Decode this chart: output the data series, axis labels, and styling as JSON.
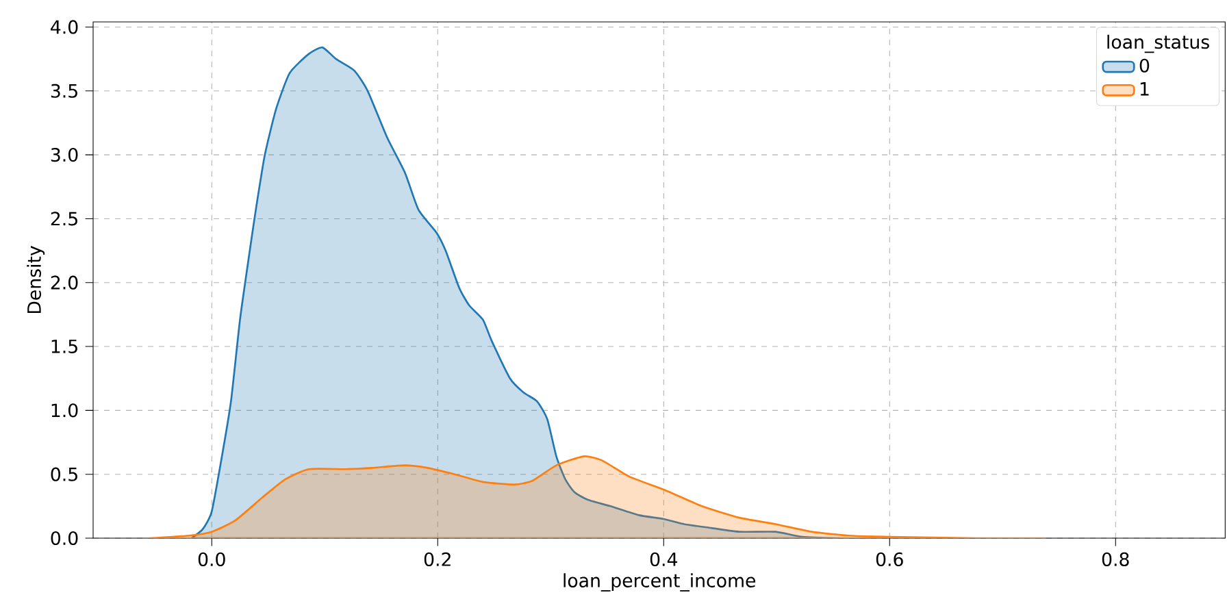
{
  "chart_data": {
    "type": "area",
    "xlabel": "loan_percent_income",
    "ylabel": "Density",
    "legend_title": "loan_status",
    "xlim": [
      -0.105,
      0.897
    ],
    "ylim": [
      0,
      4.04
    ],
    "xticks": [
      {
        "value": 0,
        "label": "0.0"
      },
      {
        "value": 0.2,
        "label": "0.2"
      },
      {
        "value": 0.4,
        "label": "0.4"
      },
      {
        "value": 0.6,
        "label": "0.6"
      },
      {
        "value": 0.8,
        "label": "0.8"
      }
    ],
    "yticks": [
      {
        "value": 0,
        "label": "0.0"
      },
      {
        "value": 0.5,
        "label": "0.5"
      },
      {
        "value": 1,
        "label": "1.0"
      },
      {
        "value": 1.5,
        "label": "1.5"
      },
      {
        "value": 2,
        "label": "2.0"
      },
      {
        "value": 2.5,
        "label": "2.5"
      },
      {
        "value": 3,
        "label": "3.0"
      },
      {
        "value": 3.5,
        "label": "3.5"
      },
      {
        "value": 4,
        "label": "4.0"
      }
    ],
    "grid": true,
    "legend": "top right",
    "series": [
      {
        "name": "0",
        "color": "#1f77b4",
        "x": [
          -0.018,
          -0.008,
          0,
          0.009,
          0.017,
          0.025,
          0.033,
          0.039,
          0.047,
          0.057,
          0.069,
          0.086,
          0.098,
          0.11,
          0.126,
          0.138,
          0.155,
          0.171,
          0.183,
          0.199,
          0.207,
          0.219,
          0.228,
          0.24,
          0.248,
          0.264,
          0.276,
          0.288,
          0.297,
          0.305,
          0.313,
          0.321,
          0.333,
          0.353,
          0.378,
          0.4,
          0.418,
          0.442,
          0.467,
          0.499,
          0.523,
          0.556
        ],
        "values": [
          0,
          0.07,
          0.21,
          0.64,
          1.07,
          1.71,
          2.21,
          2.57,
          3.0,
          3.36,
          3.64,
          3.79,
          3.84,
          3.75,
          3.66,
          3.5,
          3.14,
          2.86,
          2.57,
          2.39,
          2.25,
          1.96,
          1.82,
          1.71,
          1.54,
          1.25,
          1.14,
          1.07,
          0.93,
          0.64,
          0.46,
          0.36,
          0.3,
          0.25,
          0.18,
          0.15,
          0.11,
          0.08,
          0.05,
          0.05,
          0.01,
          0
        ]
      },
      {
        "name": "1",
        "color": "#ff7f0e",
        "x": [
          -0.056,
          -0.02,
          0,
          0.021,
          0.045,
          0.065,
          0.086,
          0.118,
          0.142,
          0.171,
          0.191,
          0.215,
          0.24,
          0.268,
          0.284,
          0.305,
          0.329,
          0.345,
          0.37,
          0.4,
          0.434,
          0.467,
          0.499,
          0.531,
          0.564,
          0.6,
          0.677,
          0.737
        ],
        "values": [
          0,
          0.02,
          0.05,
          0.14,
          0.32,
          0.46,
          0.54,
          0.54,
          0.55,
          0.57,
          0.55,
          0.5,
          0.44,
          0.42,
          0.45,
          0.57,
          0.64,
          0.61,
          0.48,
          0.38,
          0.25,
          0.16,
          0.11,
          0.05,
          0.02,
          0.01,
          0,
          0
        ]
      }
    ]
  }
}
